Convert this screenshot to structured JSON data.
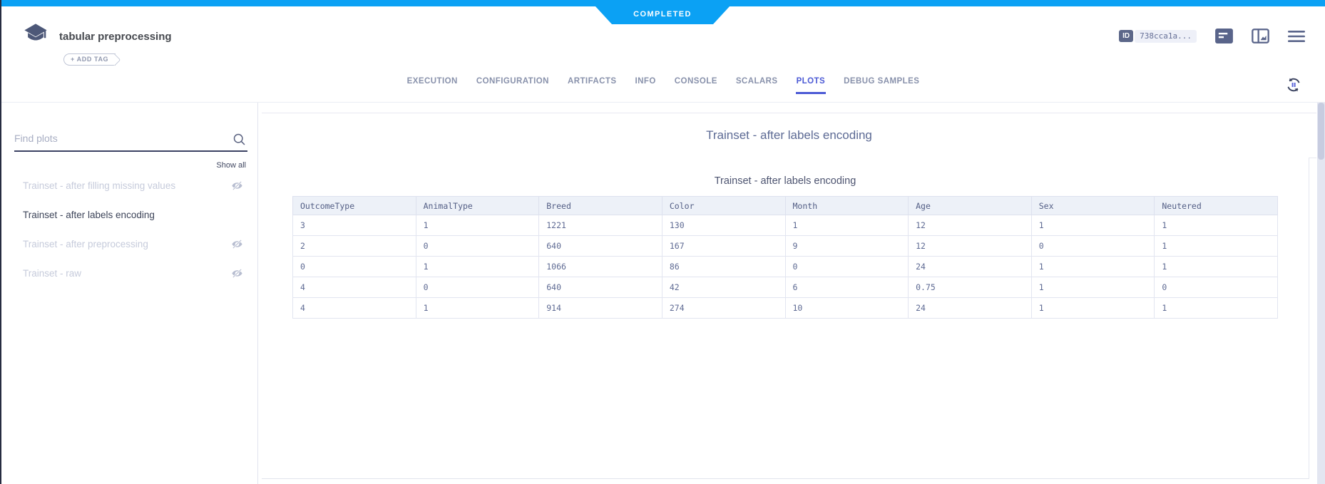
{
  "status_badge": "COMPLETED",
  "header": {
    "experiment_title": "tabular preprocessing",
    "add_tag_label": "+ ADD TAG",
    "id_label": "ID",
    "id_value": "738cca1a...",
    "icons": [
      "experiment-logo",
      "details-panel-icon",
      "compare-panels-icon",
      "menu-icon",
      "auto-refresh-icon"
    ]
  },
  "tabs": [
    {
      "label": "EXECUTION",
      "active": false
    },
    {
      "label": "CONFIGURATION",
      "active": false
    },
    {
      "label": "ARTIFACTS",
      "active": false
    },
    {
      "label": "INFO",
      "active": false
    },
    {
      "label": "CONSOLE",
      "active": false
    },
    {
      "label": "SCALARS",
      "active": false
    },
    {
      "label": "PLOTS",
      "active": true
    },
    {
      "label": "DEBUG SAMPLES",
      "active": false
    }
  ],
  "sidebar": {
    "search_placeholder": "Find plots",
    "search_icon": "search-icon",
    "show_all_label": "Show all",
    "hidden_icon": "eye-off-icon",
    "items": [
      {
        "label": "Trainset - after filling missing values",
        "selected": false,
        "hidden": true
      },
      {
        "label": "Trainset - after labels encoding",
        "selected": true,
        "hidden": false
      },
      {
        "label": "Trainset - after preprocessing",
        "selected": false,
        "hidden": true
      },
      {
        "label": "Trainset - raw",
        "selected": false,
        "hidden": true
      }
    ]
  },
  "main": {
    "section_title": "Trainset - after labels encoding",
    "chart_data": {
      "type": "table",
      "title": "Trainset - after labels encoding",
      "columns": [
        "OutcomeType",
        "AnimalType",
        "Breed",
        "Color",
        "Month",
        "Age",
        "Sex",
        "Neutered"
      ],
      "rows": [
        [
          "3",
          "1",
          "1221",
          "130",
          "1",
          "12",
          "1",
          "1"
        ],
        [
          "2",
          "0",
          "640",
          "167",
          "9",
          "12",
          "0",
          "1"
        ],
        [
          "0",
          "1",
          "1066",
          "86",
          "0",
          "24",
          "1",
          "1"
        ],
        [
          "4",
          "0",
          "640",
          "42",
          "6",
          "0.75",
          "1",
          "0"
        ],
        [
          "4",
          "1",
          "914",
          "274",
          "10",
          "24",
          "1",
          "1"
        ]
      ]
    }
  },
  "colors": {
    "accent_blue": "#0ba1f4",
    "active_tab": "#4c5ad5",
    "slate_icon": "#59648a",
    "table_header_bg": "#edf1f8",
    "table_border": "#e0e4ef",
    "dark_edge": "#272c41"
  }
}
